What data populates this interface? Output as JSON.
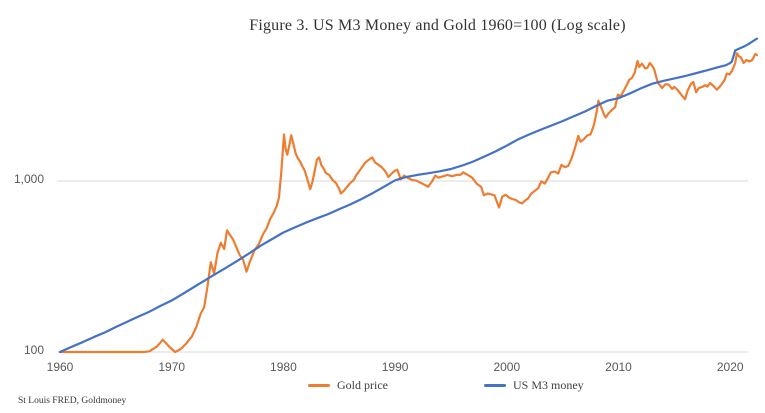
{
  "title": "Figure 3. US M3 Money and Gold 1960=100 (Log scale)",
  "source": "St Louis FRED, Goldmoney",
  "colors": {
    "gold": "#ED7D31",
    "m3": "#4472C4",
    "gridline": "#d9d9d9",
    "axis_text": "#595959"
  },
  "legend": [
    {
      "label": "Gold price",
      "color": "#ED7D31"
    },
    {
      "label": "US M3 money",
      "color": "#4472C4"
    }
  ],
  "chart_data": {
    "type": "line",
    "title": "Figure 3. US M3 Money and Gold 1960=100 (Log scale)",
    "xlabel": "",
    "ylabel": "",
    "y_scale": "log",
    "xlim": [
      1960,
      2022.5
    ],
    "ylim": [
      100,
      7000
    ],
    "x_ticks": [
      1960,
      1970,
      1980,
      1990,
      2000,
      2010,
      2020
    ],
    "y_ticks": [
      {
        "value": 100,
        "label": "100"
      },
      {
        "value": 1000,
        "label": "1,000"
      }
    ],
    "gridlines": "horizontal-only",
    "legend_position": "bottom",
    "series": [
      {
        "name": "Gold price",
        "color": "#ED7D31",
        "points": [
          [
            1960,
            100
          ],
          [
            1962,
            100
          ],
          [
            1964,
            100
          ],
          [
            1966,
            100
          ],
          [
            1967.5,
            100
          ],
          [
            1968,
            101
          ],
          [
            1968.7,
            108
          ],
          [
            1969.2,
            118
          ],
          [
            1969.8,
            107
          ],
          [
            1970.3,
            100
          ],
          [
            1970.8,
            104
          ],
          [
            1971.3,
            112
          ],
          [
            1971.8,
            123
          ],
          [
            1972.2,
            140
          ],
          [
            1972.6,
            168
          ],
          [
            1972.9,
            182
          ],
          [
            1973.2,
            240
          ],
          [
            1973.5,
            335
          ],
          [
            1973.8,
            288
          ],
          [
            1974.1,
            380
          ],
          [
            1974.4,
            435
          ],
          [
            1974.7,
            400
          ],
          [
            1974.95,
            515
          ],
          [
            1975.2,
            485
          ],
          [
            1975.5,
            455
          ],
          [
            1975.8,
            408
          ],
          [
            1976.1,
            368
          ],
          [
            1976.4,
            345
          ],
          [
            1976.7,
            295
          ],
          [
            1977,
            338
          ],
          [
            1977.4,
            392
          ],
          [
            1977.8,
            428
          ],
          [
            1978.2,
            492
          ],
          [
            1978.5,
            528
          ],
          [
            1978.8,
            598
          ],
          [
            1979.1,
            645
          ],
          [
            1979.4,
            715
          ],
          [
            1979.6,
            795
          ],
          [
            1979.8,
            1110
          ],
          [
            1980.05,
            1870
          ],
          [
            1980.2,
            1540
          ],
          [
            1980.35,
            1425
          ],
          [
            1980.55,
            1640
          ],
          [
            1980.7,
            1850
          ],
          [
            1980.9,
            1640
          ],
          [
            1981.1,
            1445
          ],
          [
            1981.3,
            1355
          ],
          [
            1981.5,
            1295
          ],
          [
            1981.7,
            1215
          ],
          [
            1981.9,
            1155
          ],
          [
            1982.1,
            1045
          ],
          [
            1982.4,
            895
          ],
          [
            1982.6,
            985
          ],
          [
            1982.8,
            1145
          ],
          [
            1983,
            1330
          ],
          [
            1983.2,
            1375
          ],
          [
            1983.4,
            1235
          ],
          [
            1983.6,
            1185
          ],
          [
            1983.8,
            1115
          ],
          [
            1984.1,
            1085
          ],
          [
            1984.4,
            1015
          ],
          [
            1984.7,
            975
          ],
          [
            1985,
            895
          ],
          [
            1985.15,
            845
          ],
          [
            1985.4,
            875
          ],
          [
            1985.7,
            925
          ],
          [
            1986,
            975
          ],
          [
            1986.3,
            1015
          ],
          [
            1986.5,
            1075
          ],
          [
            1986.8,
            1145
          ],
          [
            1987,
            1195
          ],
          [
            1987.3,
            1275
          ],
          [
            1987.6,
            1325
          ],
          [
            1987.95,
            1375
          ],
          [
            1988.2,
            1285
          ],
          [
            1988.5,
            1245
          ],
          [
            1988.8,
            1205
          ],
          [
            1989.1,
            1145
          ],
          [
            1989.4,
            1055
          ],
          [
            1989.7,
            1105
          ],
          [
            1989.95,
            1145
          ],
          [
            1990.2,
            1165
          ],
          [
            1990.5,
            1025
          ],
          [
            1990.8,
            1075
          ],
          [
            1991.1,
            1045
          ],
          [
            1991.5,
            1015
          ],
          [
            1991.9,
            1005
          ],
          [
            1992.3,
            975
          ],
          [
            1992.7,
            945
          ],
          [
            1992.95,
            925
          ],
          [
            1993.3,
            995
          ],
          [
            1993.6,
            1075
          ],
          [
            1993.9,
            1045
          ],
          [
            1994.3,
            1065
          ],
          [
            1994.7,
            1085
          ],
          [
            1995.1,
            1065
          ],
          [
            1995.5,
            1085
          ],
          [
            1995.9,
            1090
          ],
          [
            1996.1,
            1125
          ],
          [
            1996.5,
            1085
          ],
          [
            1996.9,
            1045
          ],
          [
            1997.3,
            965
          ],
          [
            1997.7,
            925
          ],
          [
            1997.95,
            825
          ],
          [
            1998.3,
            845
          ],
          [
            1998.6,
            835
          ],
          [
            1998.9,
            825
          ],
          [
            1999.3,
            700
          ],
          [
            1999.6,
            810
          ],
          [
            1999.9,
            830
          ],
          [
            2000.2,
            800
          ],
          [
            2000.5,
            785
          ],
          [
            2000.8,
            775
          ],
          [
            2001.1,
            750
          ],
          [
            2001.35,
            740
          ],
          [
            2001.6,
            765
          ],
          [
            2001.9,
            790
          ],
          [
            2002.2,
            845
          ],
          [
            2002.5,
            875
          ],
          [
            2002.8,
            905
          ],
          [
            2003.1,
            995
          ],
          [
            2003.4,
            965
          ],
          [
            2003.7,
            1045
          ],
          [
            2003.95,
            1125
          ],
          [
            2004.3,
            1135
          ],
          [
            2004.6,
            1105
          ],
          [
            2004.9,
            1245
          ],
          [
            2005.2,
            1205
          ],
          [
            2005.5,
            1225
          ],
          [
            2005.8,
            1355
          ],
          [
            2006.1,
            1555
          ],
          [
            2006.4,
            1835
          ],
          [
            2006.6,
            1695
          ],
          [
            2006.9,
            1755
          ],
          [
            2007.2,
            1845
          ],
          [
            2007.5,
            1875
          ],
          [
            2007.8,
            2125
          ],
          [
            2008.05,
            2545
          ],
          [
            2008.2,
            2950
          ],
          [
            2008.5,
            2650
          ],
          [
            2008.7,
            2450
          ],
          [
            2008.85,
            2350
          ],
          [
            2009.1,
            2480
          ],
          [
            2009.4,
            2600
          ],
          [
            2009.7,
            2700
          ],
          [
            2009.95,
            3200
          ],
          [
            2010.2,
            3130
          ],
          [
            2010.5,
            3400
          ],
          [
            2010.8,
            3700
          ],
          [
            2010.95,
            3900
          ],
          [
            2011.2,
            4000
          ],
          [
            2011.45,
            4300
          ],
          [
            2011.7,
            5030
          ],
          [
            2011.85,
            4650
          ],
          [
            2012.1,
            4850
          ],
          [
            2012.4,
            4550
          ],
          [
            2012.6,
            4600
          ],
          [
            2012.8,
            4900
          ],
          [
            2013,
            4730
          ],
          [
            2013.2,
            4500
          ],
          [
            2013.45,
            3900
          ],
          [
            2013.6,
            3700
          ],
          [
            2013.9,
            3500
          ],
          [
            2014.2,
            3680
          ],
          [
            2014.5,
            3660
          ],
          [
            2014.8,
            3450
          ],
          [
            2015,
            3550
          ],
          [
            2015.3,
            3400
          ],
          [
            2015.6,
            3200
          ],
          [
            2015.95,
            3010
          ],
          [
            2016.2,
            3400
          ],
          [
            2016.5,
            3700
          ],
          [
            2016.7,
            3800
          ],
          [
            2016.95,
            3300
          ],
          [
            2017.2,
            3500
          ],
          [
            2017.5,
            3550
          ],
          [
            2017.8,
            3640
          ],
          [
            2017.95,
            3560
          ],
          [
            2018.2,
            3740
          ],
          [
            2018.5,
            3600
          ],
          [
            2018.8,
            3420
          ],
          [
            2018.95,
            3500
          ],
          [
            2019.2,
            3650
          ],
          [
            2019.5,
            3900
          ],
          [
            2019.7,
            4250
          ],
          [
            2019.95,
            4200
          ],
          [
            2020.2,
            4450
          ],
          [
            2020.45,
            4900
          ],
          [
            2020.6,
            5590
          ],
          [
            2020.8,
            5350
          ],
          [
            2020.95,
            5300
          ],
          [
            2021.2,
            4900
          ],
          [
            2021.45,
            5100
          ],
          [
            2021.7,
            5000
          ],
          [
            2021.95,
            5080
          ],
          [
            2022.1,
            5300
          ],
          [
            2022.25,
            5530
          ],
          [
            2022.4,
            5450
          ]
        ]
      },
      {
        "name": "US M3 money",
        "color": "#4472C4",
        "points": [
          [
            1960,
            100
          ],
          [
            1961,
            107
          ],
          [
            1962,
            114
          ],
          [
            1963,
            122
          ],
          [
            1964,
            130
          ],
          [
            1965,
            140
          ],
          [
            1966,
            150
          ],
          [
            1967,
            161
          ],
          [
            1968,
            172
          ],
          [
            1969,
            186
          ],
          [
            1970,
            200
          ],
          [
            1971,
            219
          ],
          [
            1972,
            240
          ],
          [
            1973,
            263
          ],
          [
            1974,
            288
          ],
          [
            1975,
            315
          ],
          [
            1976,
            345
          ],
          [
            1977,
            380
          ],
          [
            1978,
            420
          ],
          [
            1979,
            458
          ],
          [
            1980,
            500
          ],
          [
            1981,
            535
          ],
          [
            1982,
            570
          ],
          [
            1983,
            605
          ],
          [
            1984,
            640
          ],
          [
            1985,
            685
          ],
          [
            1986,
            730
          ],
          [
            1987,
            785
          ],
          [
            1988,
            850
          ],
          [
            1989,
            925
          ],
          [
            1990,
            1010
          ],
          [
            1991,
            1055
          ],
          [
            1992,
            1085
          ],
          [
            1993,
            1110
          ],
          [
            1994,
            1140
          ],
          [
            1995,
            1175
          ],
          [
            1996,
            1230
          ],
          [
            1997,
            1300
          ],
          [
            1998,
            1390
          ],
          [
            1999,
            1490
          ],
          [
            2000,
            1610
          ],
          [
            2001,
            1750
          ],
          [
            2002,
            1870
          ],
          [
            2003,
            1990
          ],
          [
            2004,
            2110
          ],
          [
            2005,
            2240
          ],
          [
            2006,
            2390
          ],
          [
            2007,
            2550
          ],
          [
            2008,
            2750
          ],
          [
            2009,
            2950
          ],
          [
            2010,
            3050
          ],
          [
            2011,
            3250
          ],
          [
            2012,
            3480
          ],
          [
            2013,
            3700
          ],
          [
            2014,
            3850
          ],
          [
            2015,
            3980
          ],
          [
            2016,
            4120
          ],
          [
            2017,
            4280
          ],
          [
            2018,
            4450
          ],
          [
            2019,
            4650
          ],
          [
            2019.6,
            4750
          ],
          [
            2020,
            4900
          ],
          [
            2020.15,
            5000
          ],
          [
            2020.45,
            5800
          ],
          [
            2020.8,
            5950
          ],
          [
            2021.2,
            6100
          ],
          [
            2021.6,
            6300
          ],
          [
            2022,
            6550
          ],
          [
            2022.4,
            6800
          ]
        ]
      }
    ]
  }
}
